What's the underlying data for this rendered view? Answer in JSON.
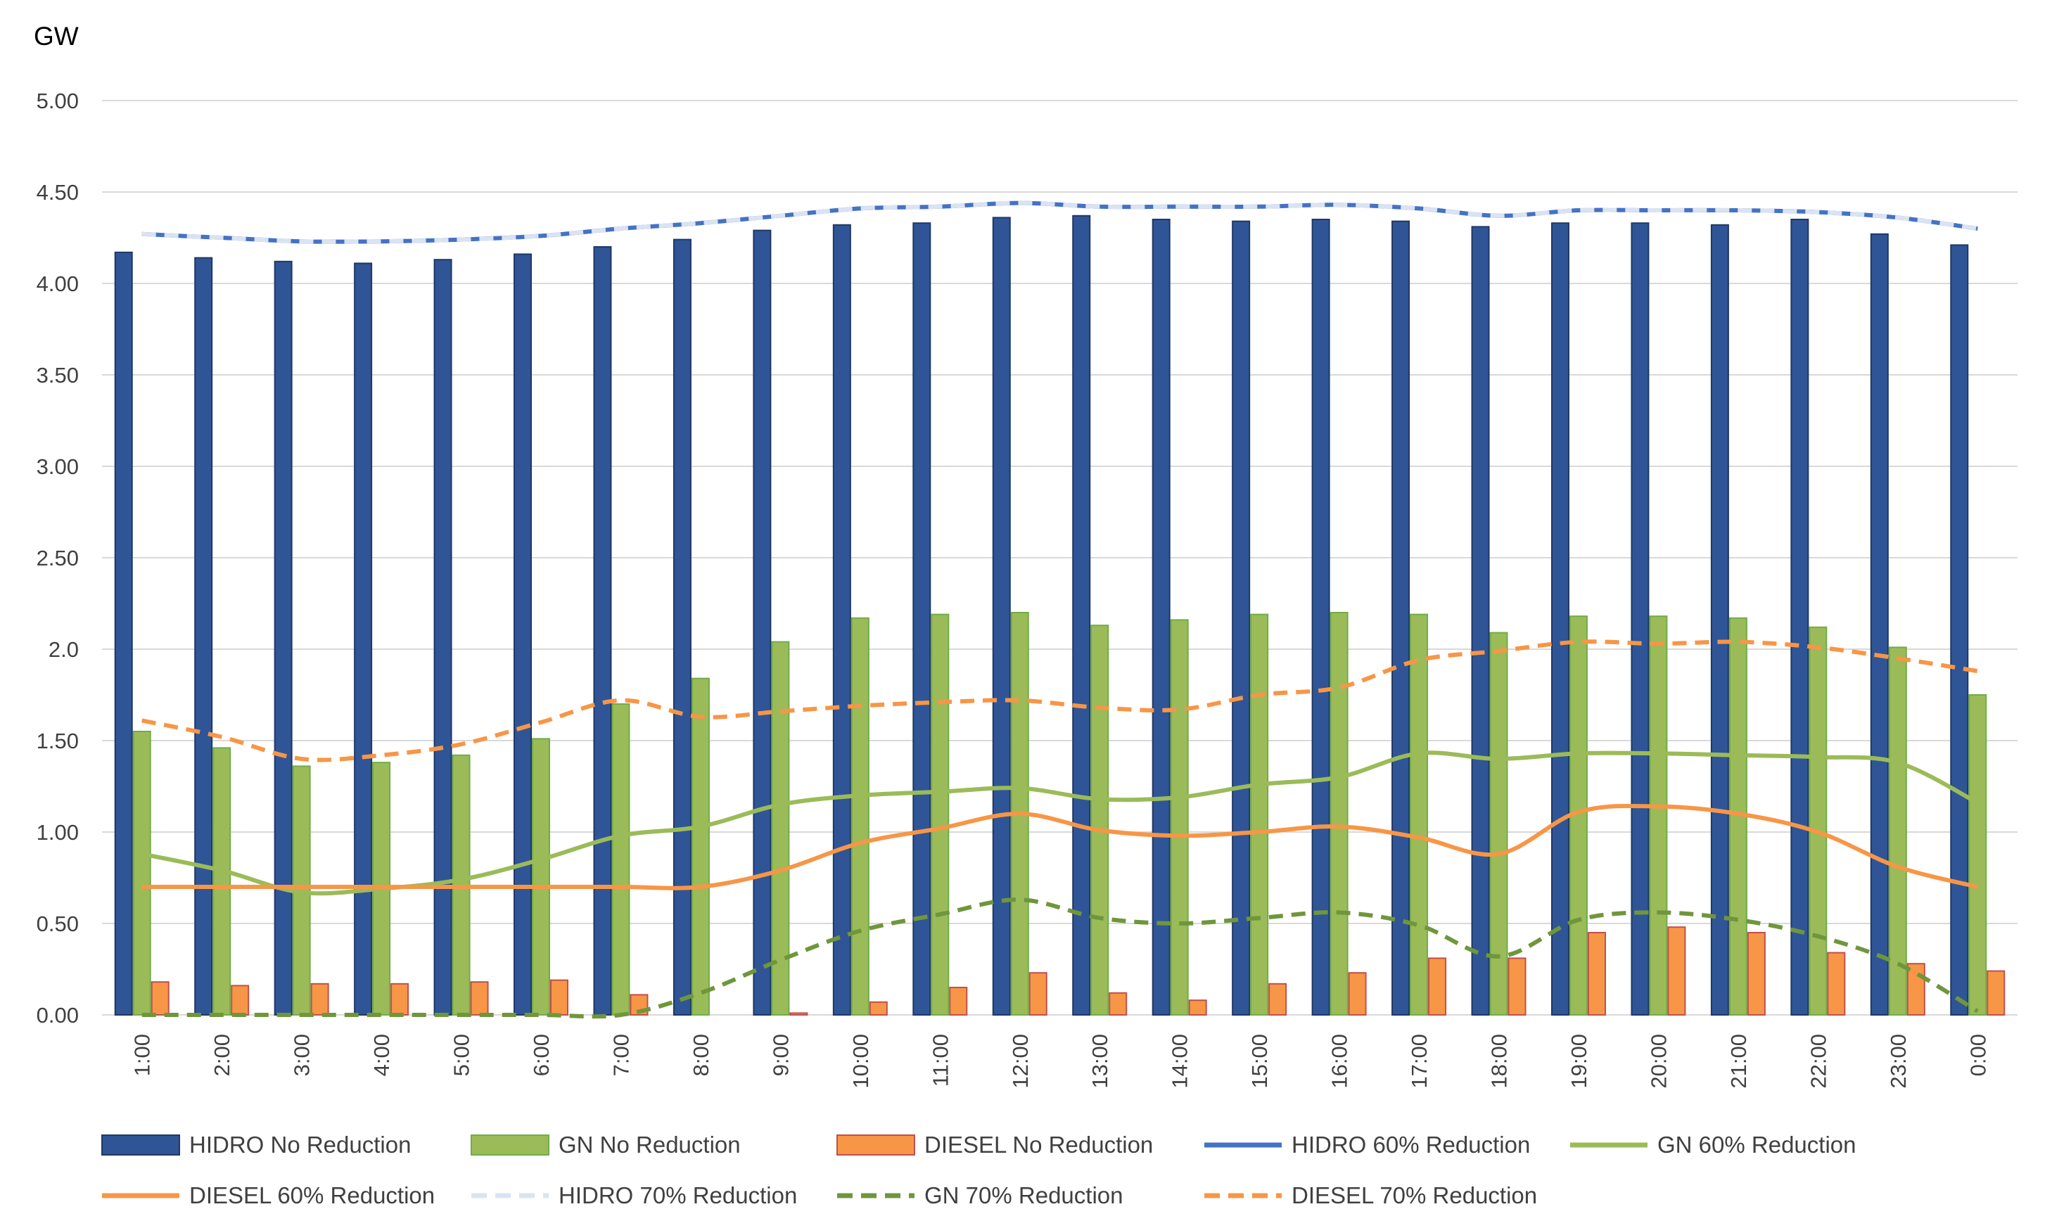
{
  "chart_data": {
    "type": "bar",
    "title": "",
    "ylabel": "GW",
    "xlabel": "",
    "ylim": [
      0,
      5
    ],
    "y_ticks": [
      "0.00",
      "0.50",
      "1.00",
      "1.50",
      "2.0",
      "2.50",
      "3.00",
      "3.50",
      "4.00",
      "4.50",
      "5.00"
    ],
    "grid": true,
    "legend_position": "bottom",
    "categories": [
      "1:00",
      "2:00",
      "3:00",
      "4:00",
      "5:00",
      "6:00",
      "7:00",
      "8:00",
      "9:00",
      "10:00",
      "11:00",
      "12:00",
      "13:00",
      "14:00",
      "15:00",
      "16:00",
      "17:00",
      "18:00",
      "19:00",
      "20:00",
      "21:00",
      "22:00",
      "23:00",
      "0:00"
    ],
    "series": [
      {
        "name": "HIDRO No Reduction",
        "kind": "bar",
        "color": "#2F5597",
        "edge": "#1F3864",
        "values": [
          4.17,
          4.14,
          4.12,
          4.11,
          4.13,
          4.16,
          4.2,
          4.24,
          4.29,
          4.32,
          4.33,
          4.36,
          4.37,
          4.35,
          4.34,
          4.35,
          4.34,
          4.31,
          4.33,
          4.33,
          4.32,
          4.35,
          4.27,
          4.21
        ]
      },
      {
        "name": "GN No Reduction",
        "kind": "bar",
        "color": "#9BBB59",
        "edge": "#70AD47",
        "values": [
          1.55,
          1.46,
          1.36,
          1.38,
          1.42,
          1.51,
          1.7,
          1.84,
          2.04,
          2.17,
          2.19,
          2.2,
          2.13,
          2.16,
          2.19,
          2.2,
          2.19,
          2.09,
          2.18,
          2.18,
          2.17,
          2.12,
          2.01,
          1.75
        ]
      },
      {
        "name": "DIESEL No Reduction",
        "kind": "bar",
        "color": "#F79646",
        "edge": "#C0504D",
        "values": [
          0.18,
          0.16,
          0.17,
          0.17,
          0.18,
          0.19,
          0.11,
          0.0,
          0.01,
          0.07,
          0.15,
          0.23,
          0.12,
          0.08,
          0.17,
          0.23,
          0.31,
          0.31,
          0.45,
          0.48,
          0.45,
          0.34,
          0.28,
          0.24
        ]
      },
      {
        "name": "HIDRO 60% Reduction",
        "kind": "line",
        "color": "#4472C4",
        "dash": "solid",
        "values": [
          4.27,
          4.25,
          4.23,
          4.23,
          4.24,
          4.26,
          4.3,
          4.33,
          4.37,
          4.41,
          4.42,
          4.44,
          4.42,
          4.42,
          4.42,
          4.43,
          4.41,
          4.37,
          4.4,
          4.4,
          4.4,
          4.39,
          4.36,
          4.3
        ]
      },
      {
        "name": "GN 60% Reduction",
        "kind": "line",
        "color": "#9BBB59",
        "dash": "solid",
        "values": [
          0.88,
          0.79,
          0.67,
          0.69,
          0.74,
          0.85,
          0.98,
          1.03,
          1.15,
          1.2,
          1.22,
          1.24,
          1.18,
          1.19,
          1.26,
          1.3,
          1.43,
          1.4,
          1.43,
          1.43,
          1.42,
          1.41,
          1.38,
          1.16
        ]
      },
      {
        "name": "DIESEL 60% Reduction",
        "kind": "line",
        "color": "#F79646",
        "dash": "solid",
        "values": [
          0.7,
          0.7,
          0.7,
          0.7,
          0.7,
          0.7,
          0.7,
          0.7,
          0.79,
          0.94,
          1.02,
          1.1,
          1.01,
          0.98,
          1.0,
          1.03,
          0.97,
          0.88,
          1.11,
          1.14,
          1.1,
          1.0,
          0.81,
          0.7
        ]
      },
      {
        "name": "HIDRO 70% Reduction",
        "kind": "line",
        "color": "#DAE3F3",
        "dash": "dash",
        "values": [
          4.27,
          4.25,
          4.23,
          4.23,
          4.24,
          4.26,
          4.3,
          4.33,
          4.37,
          4.41,
          4.42,
          4.44,
          4.42,
          4.42,
          4.42,
          4.43,
          4.41,
          4.37,
          4.4,
          4.4,
          4.4,
          4.39,
          4.36,
          4.3
        ]
      },
      {
        "name": "GN 70% Reduction",
        "kind": "line",
        "color": "#70963C",
        "dash": "dash",
        "values": [
          0.0,
          0.0,
          0.0,
          0.0,
          0.0,
          0.0,
          0.0,
          0.12,
          0.3,
          0.46,
          0.55,
          0.63,
          0.53,
          0.5,
          0.53,
          0.56,
          0.49,
          0.32,
          0.52,
          0.56,
          0.52,
          0.43,
          0.28,
          0.02
        ]
      },
      {
        "name": "DIESEL 70% Reduction",
        "kind": "line",
        "color": "#F79646",
        "dash": "dash",
        "values": [
          1.61,
          1.52,
          1.4,
          1.42,
          1.48,
          1.6,
          1.72,
          1.63,
          1.66,
          1.69,
          1.71,
          1.72,
          1.68,
          1.67,
          1.75,
          1.79,
          1.94,
          1.99,
          2.04,
          2.03,
          2.04,
          2.01,
          1.95,
          1.88
        ]
      }
    ]
  }
}
